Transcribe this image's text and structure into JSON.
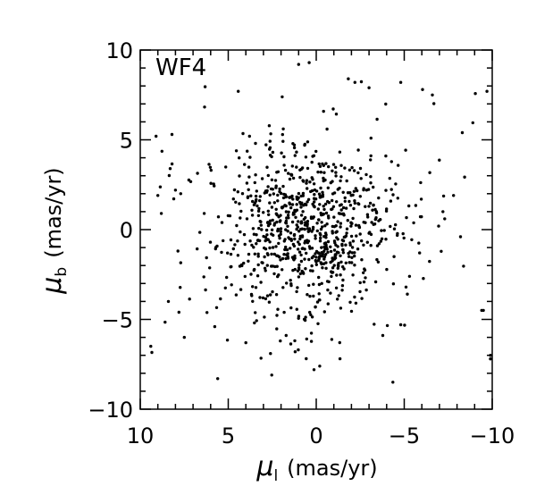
{
  "chart_data": {
    "type": "scatter",
    "panel_label": "WF4",
    "xlabel": {
      "symbol": "μ",
      "subscript": "l",
      "unit": "(mas/yr)"
    },
    "ylabel": {
      "symbol": "μ",
      "subscript": "b",
      "unit": "(mas/yr)"
    },
    "xlim": [
      10,
      -10
    ],
    "ylim": [
      -10,
      10
    ],
    "x_reversed": true,
    "xticks": [
      "10",
      "5",
      "0",
      "−5",
      "−10"
    ],
    "yticks": [
      "10",
      "5",
      "0",
      "−5",
      "−10"
    ],
    "grid": false,
    "marker_color": "#000000",
    "points_spread": {
      "core_count": 760,
      "core_center": [
        0.5,
        -0.1
      ],
      "core_sigma": [
        2.4,
        2.3
      ],
      "halo_count": 140,
      "halo_center": [
        0.0,
        0.0
      ],
      "halo_sigma": [
        4.5,
        4.0
      ]
    },
    "outliers": [
      [
        1.0,
        9.2
      ],
      [
        0.4,
        9.3
      ],
      [
        -2.2,
        8.2
      ],
      [
        -4.8,
        8.2
      ],
      [
        -3.0,
        7.9
      ],
      [
        -6.6,
        7.5
      ],
      [
        -9.7,
        7.7
      ],
      [
        -8.3,
        5.4
      ],
      [
        9.1,
        5.2
      ],
      [
        8.2,
        5.3
      ],
      [
        -7.2,
        1.0
      ],
      [
        -7.3,
        0.6
      ],
      [
        -7.8,
        1.9
      ],
      [
        -8.2,
        -0.4
      ],
      [
        -9.4,
        -4.5
      ],
      [
        -9.5,
        -4.5
      ],
      [
        -9.9,
        -7.0
      ],
      [
        -9.9,
        -7.2
      ],
      [
        9.4,
        -6.5
      ],
      [
        5.6,
        -8.3
      ],
      [
        -0.2,
        -7.6
      ],
      [
        7.5,
        -6.0
      ],
      [
        8.4,
        -4.0
      ],
      [
        7.8,
        -4.6
      ],
      [
        9.0,
        1.9
      ],
      [
        8.8,
        0.9
      ],
      [
        8.3,
        3.4
      ],
      [
        8.0,
        2.2
      ],
      [
        7.7,
        2.0
      ],
      [
        -4.8,
        -5.3
      ],
      [
        -5.3,
        -2.6
      ],
      [
        -5.1,
        -3.2
      ],
      [
        1.2,
        -6.8
      ],
      [
        2.6,
        -6.9
      ],
      [
        4.0,
        -6.3
      ]
    ]
  }
}
